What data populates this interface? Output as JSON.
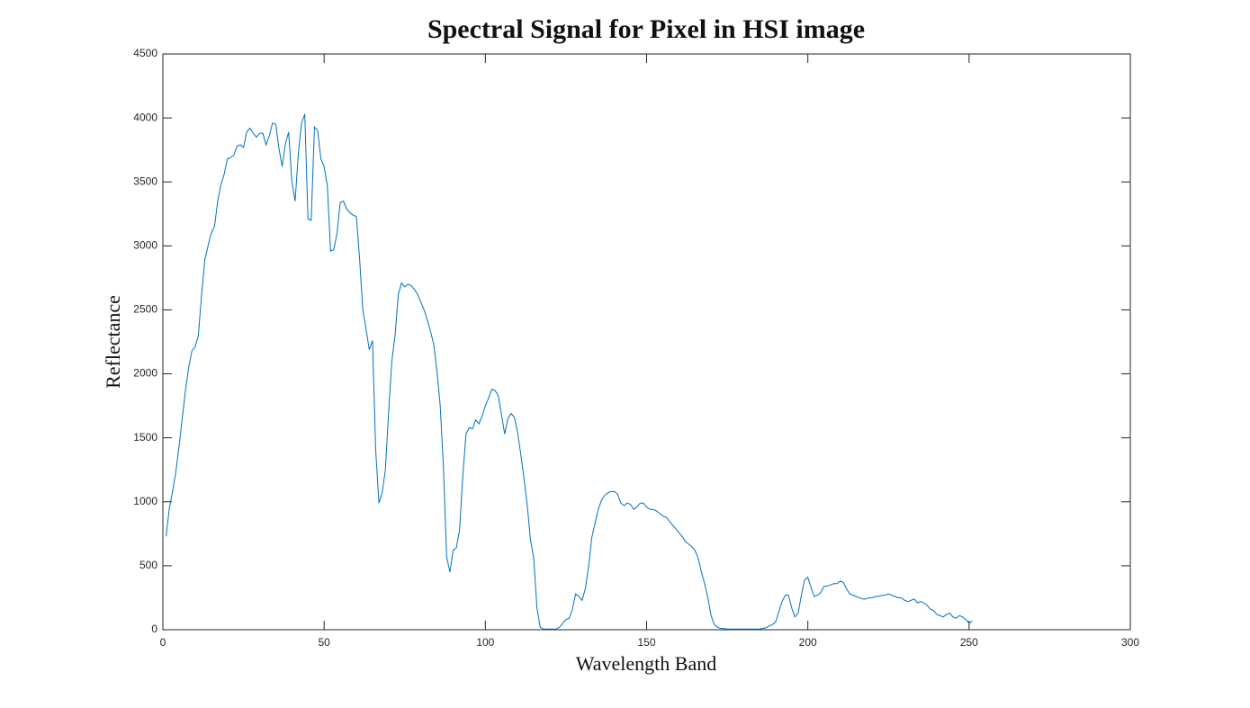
{
  "chart_data": {
    "type": "line",
    "title": "Spectral Signal for Pixel in HSI image",
    "xlabel": "Wavelength Band",
    "ylabel": "Reflectance",
    "x": [
      1,
      2,
      3,
      4,
      5,
      6,
      7,
      8,
      9,
      10,
      11,
      12,
      13,
      14,
      15,
      16,
      17,
      18,
      19,
      20,
      21,
      22,
      23,
      24,
      25,
      26,
      27,
      28,
      29,
      30,
      31,
      32,
      33,
      34,
      35,
      36,
      37,
      38,
      39,
      40,
      41,
      42,
      43,
      44,
      45,
      46,
      47,
      48,
      49,
      50,
      51,
      52,
      53,
      54,
      55,
      56,
      57,
      58,
      59,
      60,
      61,
      62,
      63,
      64,
      65,
      66,
      67,
      68,
      69,
      70,
      71,
      72,
      73,
      74,
      75,
      76,
      77,
      78,
      79,
      80,
      81,
      82,
      83,
      84,
      85,
      86,
      87,
      88,
      89,
      90,
      91,
      92,
      93,
      94,
      95,
      96,
      97,
      98,
      99,
      100,
      101,
      102,
      103,
      104,
      105,
      106,
      107,
      108,
      109,
      110,
      111,
      112,
      113,
      114,
      115,
      116,
      117,
      118,
      119,
      120,
      121,
      122,
      123,
      124,
      125,
      126,
      127,
      128,
      129,
      130,
      131,
      132,
      133,
      134,
      135,
      136,
      137,
      138,
      139,
      140,
      141,
      142,
      143,
      144,
      145,
      146,
      147,
      148,
      149,
      150,
      151,
      152,
      153,
      154,
      155,
      156,
      157,
      158,
      159,
      160,
      161,
      162,
      163,
      164,
      165,
      166,
      167,
      168,
      169,
      170,
      171,
      172,
      173,
      174,
      175,
      176,
      177,
      178,
      179,
      180,
      181,
      182,
      183,
      184,
      185,
      186,
      187,
      188,
      189,
      190,
      191,
      192,
      193,
      194,
      195,
      196,
      197,
      198,
      199,
      200,
      201,
      202,
      203,
      204,
      205,
      206,
      207,
      208,
      209,
      210,
      211,
      212,
      213,
      214,
      215,
      216,
      217,
      218,
      219,
      220,
      221,
      222,
      223,
      224,
      225,
      226,
      227,
      228,
      229,
      230,
      231,
      232,
      233,
      234,
      235,
      236,
      237,
      238,
      239,
      240,
      241,
      242,
      243,
      244,
      245,
      246,
      247,
      248,
      249,
      250,
      251
    ],
    "series": [
      {
        "color": "#0072bd",
        "values": [
          730,
          950,
          1080,
          1230,
          1430,
          1650,
          1870,
          2050,
          2180,
          2210,
          2300,
          2620,
          2890,
          3000,
          3100,
          3150,
          3350,
          3480,
          3560,
          3680,
          3690,
          3710,
          3780,
          3790,
          3770,
          3890,
          3920,
          3880,
          3850,
          3880,
          3880,
          3790,
          3860,
          3960,
          3950,
          3760,
          3620,
          3800,
          3890,
          3500,
          3350,
          3720,
          3960,
          4030,
          3210,
          3200,
          3930,
          3900,
          3680,
          3620,
          3470,
          2960,
          2970,
          3100,
          3340,
          3350,
          3290,
          3260,
          3240,
          3230,
          2900,
          2500,
          2350,
          2190,
          2260,
          1400,
          990,
          1070,
          1250,
          1700,
          2100,
          2300,
          2620,
          2710,
          2680,
          2700,
          2690,
          2660,
          2620,
          2560,
          2500,
          2420,
          2330,
          2230,
          2020,
          1750,
          1270,
          570,
          450,
          620,
          640,
          780,
          1200,
          1530,
          1580,
          1570,
          1640,
          1610,
          1670,
          1750,
          1810,
          1880,
          1870,
          1830,
          1680,
          1530,
          1650,
          1690,
          1660,
          1540,
          1370,
          1180,
          970,
          700,
          560,
          170,
          20,
          5,
          5,
          5,
          5,
          5,
          20,
          50,
          80,
          90,
          160,
          280,
          260,
          230,
          320,
          490,
          720,
          830,
          940,
          1010,
          1050,
          1070,
          1080,
          1080,
          1060,
          990,
          970,
          990,
          980,
          940,
          960,
          990,
          990,
          960,
          940,
          940,
          930,
          910,
          890,
          880,
          850,
          820,
          790,
          760,
          730,
          690,
          670,
          650,
          620,
          560,
          450,
          360,
          250,
          110,
          40,
          20,
          10,
          10,
          5,
          5,
          5,
          5,
          5,
          5,
          5,
          5,
          5,
          5,
          5,
          10,
          15,
          30,
          40,
          60,
          140,
          220,
          270,
          270,
          170,
          100,
          130,
          270,
          390,
          410,
          330,
          260,
          270,
          290,
          340,
          340,
          350,
          360,
          360,
          380,
          370,
          320,
          280,
          270,
          260,
          250,
          240,
          240,
          250,
          250,
          260,
          260,
          270,
          270,
          280,
          270,
          260,
          250,
          250,
          230,
          220,
          230,
          240,
          210,
          220,
          210,
          190,
          160,
          150,
          120,
          110,
          100,
          120,
          130,
          100,
          90,
          110,
          100,
          80,
          50,
          70
        ]
      }
    ],
    "xlim": [
      0,
      300
    ],
    "xticks": [
      0,
      50,
      100,
      150,
      200,
      250,
      300
    ],
    "ylim": [
      0,
      4500
    ],
    "yticks": [
      0,
      500,
      1000,
      1500,
      2000,
      2500,
      3000,
      3500,
      4000,
      4500
    ]
  }
}
